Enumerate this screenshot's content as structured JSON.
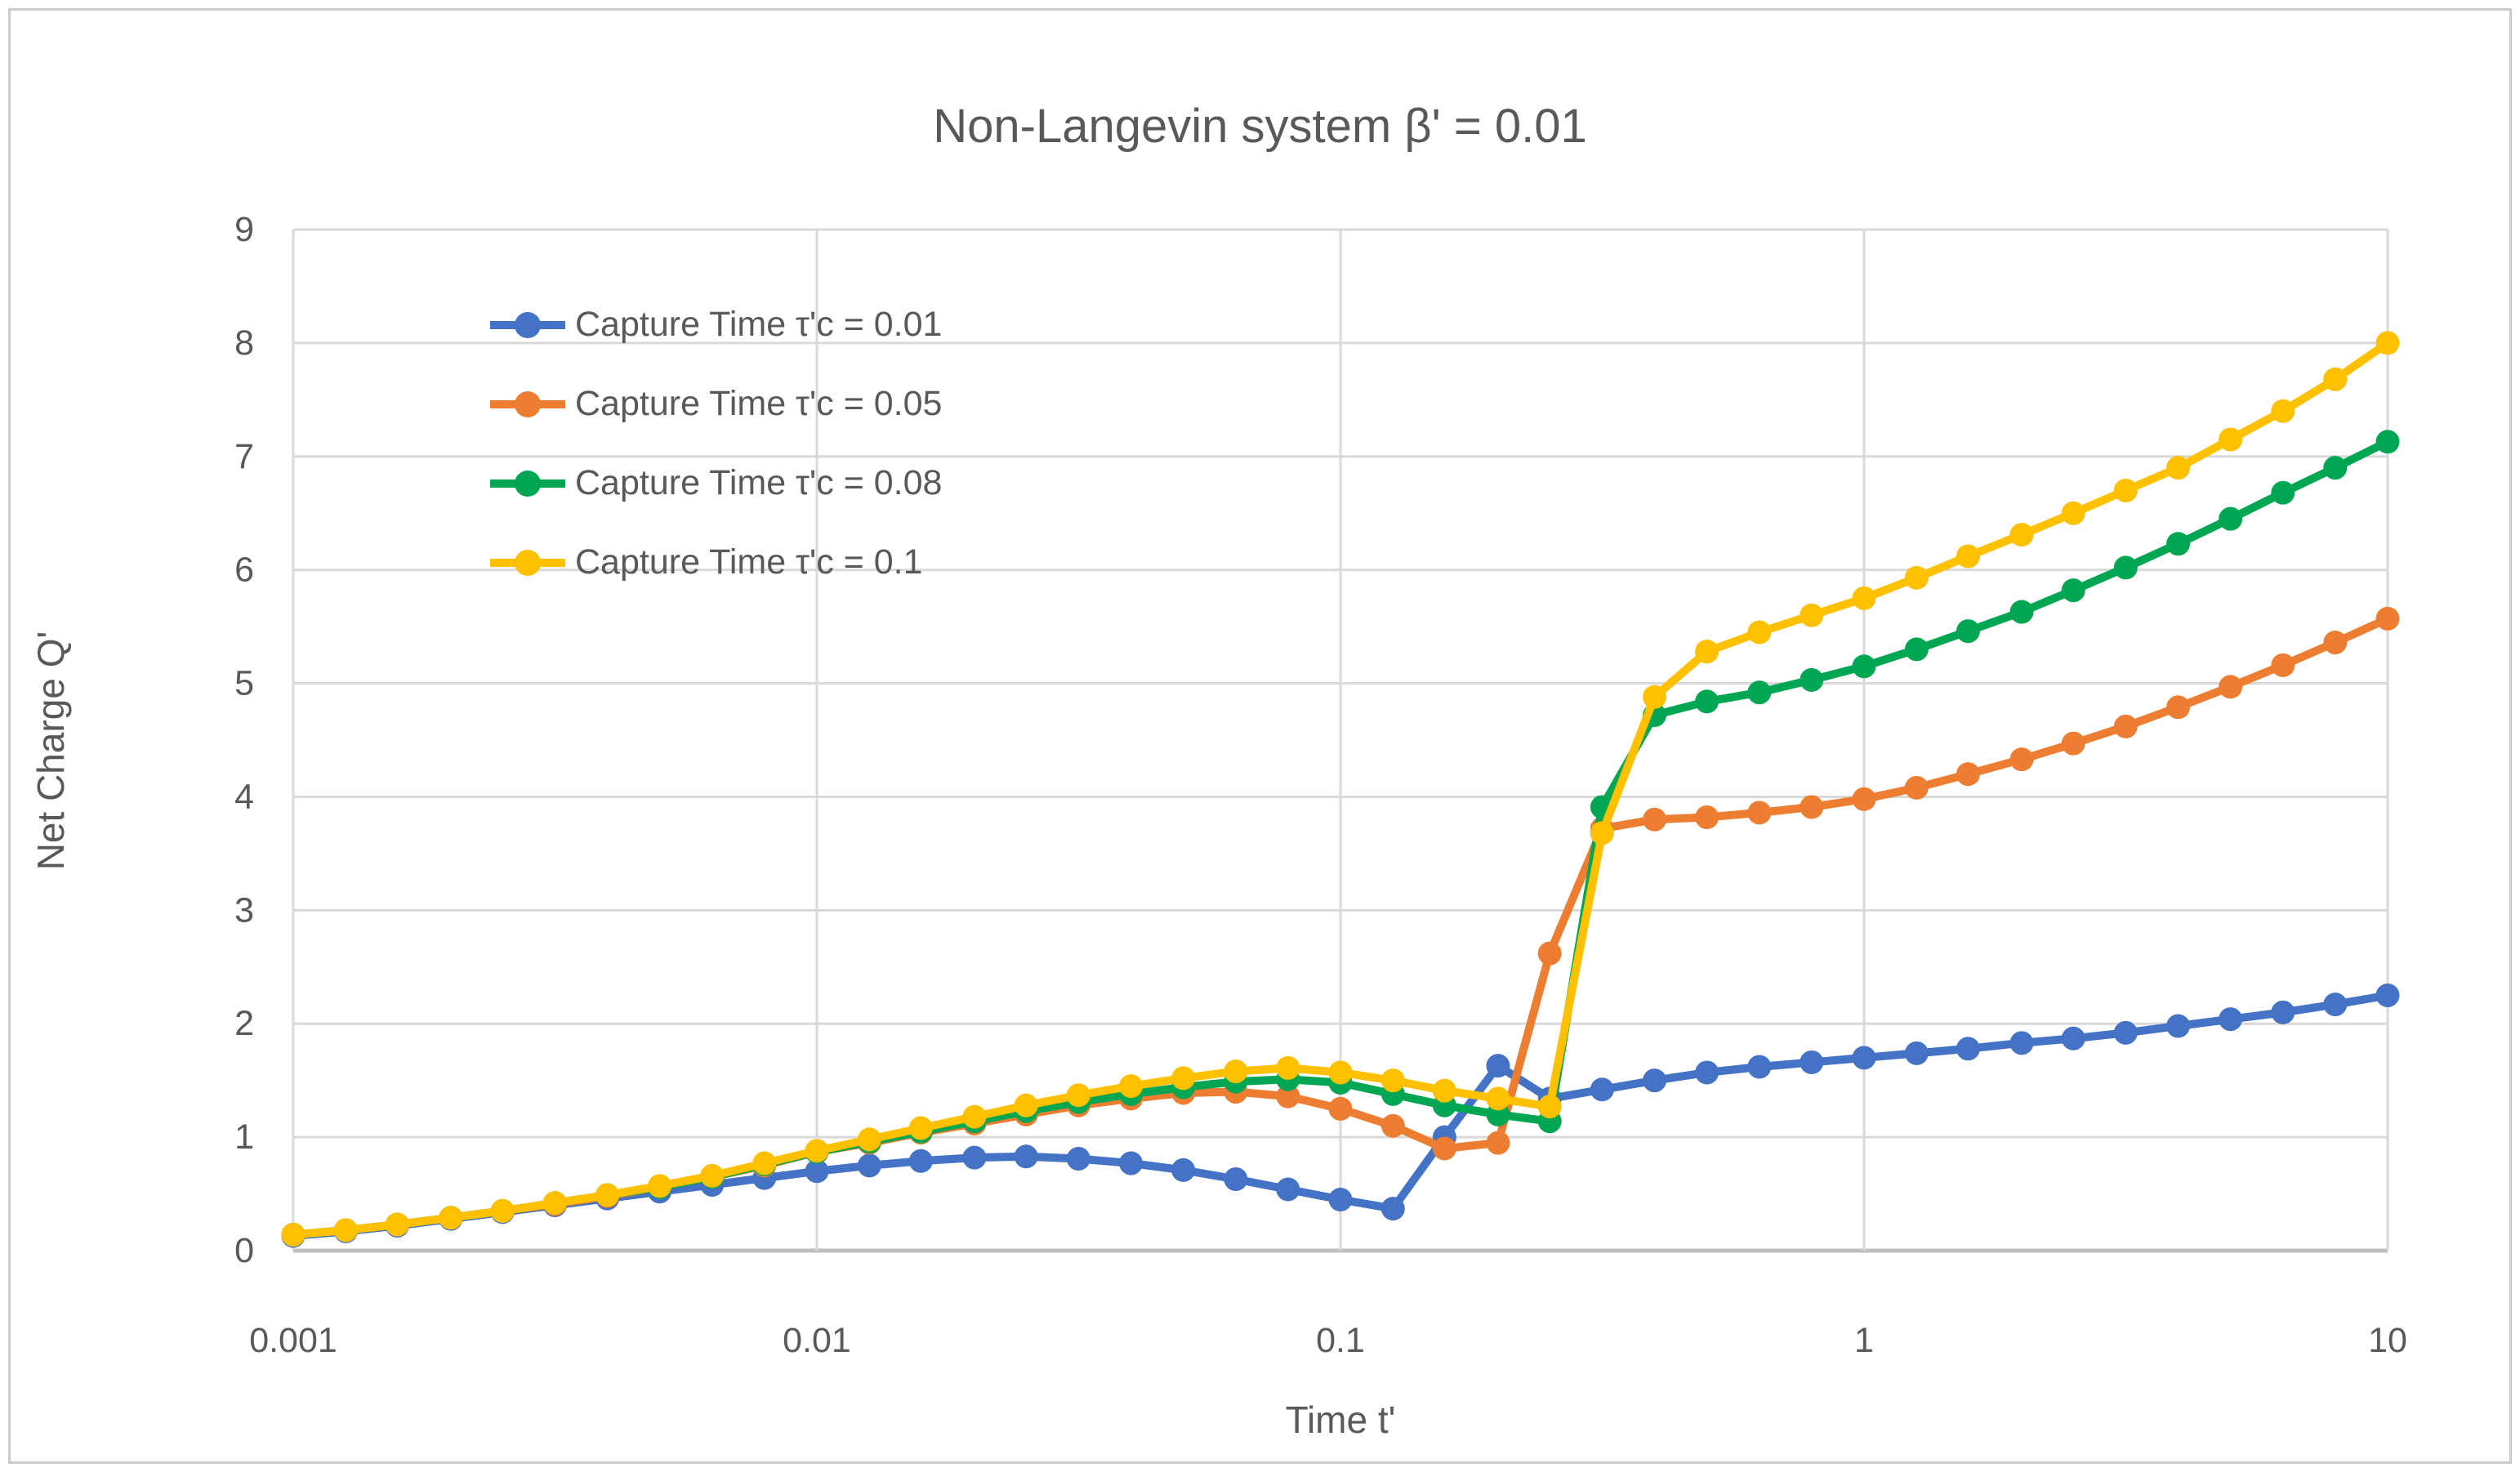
{
  "chart_data": {
    "type": "line",
    "title": "Non-Langevin system β' = 0.01",
    "xlabel": "Time t'",
    "ylabel": "Net Charge Q'",
    "x_scale": "log",
    "xlim": [
      0.001,
      10
    ],
    "ylim": [
      0,
      9
    ],
    "y_tick_step": 1,
    "grid": true,
    "legend_position": "top-left-inside",
    "x_tick_labels": [
      "0.001",
      "0.01",
      "0.1",
      "1",
      "10"
    ],
    "x_ticks": [
      0.001,
      0.01,
      0.1,
      1,
      10
    ],
    "colors": {
      "text": "#595959",
      "gridline": "#D9D9D9",
      "axis_line": "#BFBFBF"
    },
    "x": [
      0.001,
      0.00126,
      0.00158,
      0.002,
      0.00251,
      0.00316,
      0.00398,
      0.00501,
      0.00631,
      0.00794,
      0.01,
      0.0126,
      0.0158,
      0.02,
      0.0251,
      0.0316,
      0.0398,
      0.0501,
      0.0631,
      0.0794,
      0.1,
      0.126,
      0.158,
      0.2,
      0.251,
      0.316,
      0.398,
      0.501,
      0.631,
      0.794,
      1,
      1.26,
      1.58,
      2,
      2.51,
      3.16,
      3.98,
      5.01,
      6.31,
      7.94,
      10
    ],
    "series": [
      {
        "name": "Capture Time τ'c = 0.01",
        "color": "#4472C4",
        "values": [
          0.13,
          0.17,
          0.22,
          0.28,
          0.34,
          0.4,
          0.46,
          0.52,
          0.58,
          0.64,
          0.7,
          0.75,
          0.79,
          0.82,
          0.83,
          0.81,
          0.77,
          0.71,
          0.63,
          0.54,
          0.45,
          0.37,
          1.0,
          1.63,
          1.34,
          1.42,
          1.5,
          1.57,
          1.62,
          1.66,
          1.7,
          1.74,
          1.78,
          1.83,
          1.87,
          1.92,
          1.98,
          2.04,
          2.1,
          2.17,
          2.25
        ]
      },
      {
        "name": "Capture Time τ'c = 0.05",
        "color": "#ED7D31",
        "values": [
          0.14,
          0.18,
          0.23,
          0.29,
          0.35,
          0.41,
          0.48,
          0.56,
          0.65,
          0.75,
          0.87,
          0.95,
          1.04,
          1.12,
          1.2,
          1.28,
          1.34,
          1.39,
          1.4,
          1.36,
          1.25,
          1.1,
          0.9,
          0.95,
          2.62,
          3.72,
          3.8,
          3.82,
          3.86,
          3.91,
          3.98,
          4.08,
          4.2,
          4.33,
          4.47,
          4.62,
          4.79,
          4.97,
          5.16,
          5.36,
          5.57
        ]
      },
      {
        "name": "Capture Time τ'c = 0.08",
        "color": "#00A651",
        "values": [
          0.14,
          0.18,
          0.23,
          0.29,
          0.35,
          0.42,
          0.49,
          0.56,
          0.65,
          0.76,
          0.87,
          0.96,
          1.05,
          1.14,
          1.23,
          1.31,
          1.38,
          1.44,
          1.49,
          1.51,
          1.48,
          1.38,
          1.28,
          1.2,
          1.14,
          3.91,
          4.72,
          4.84,
          4.92,
          5.03,
          5.15,
          5.3,
          5.46,
          5.63,
          5.82,
          6.02,
          6.23,
          6.45,
          6.68,
          6.9,
          7.13
        ]
      },
      {
        "name": "Capture Time τ'c = 0.1",
        "color": "#FFC000",
        "values": [
          0.14,
          0.18,
          0.23,
          0.29,
          0.35,
          0.42,
          0.49,
          0.57,
          0.66,
          0.77,
          0.88,
          0.98,
          1.08,
          1.18,
          1.28,
          1.37,
          1.45,
          1.52,
          1.58,
          1.61,
          1.57,
          1.5,
          1.41,
          1.34,
          1.27,
          3.68,
          4.88,
          5.28,
          5.45,
          5.6,
          5.75,
          5.93,
          6.12,
          6.31,
          6.5,
          6.7,
          6.9,
          7.15,
          7.4,
          7.68,
          8.0
        ]
      }
    ]
  }
}
